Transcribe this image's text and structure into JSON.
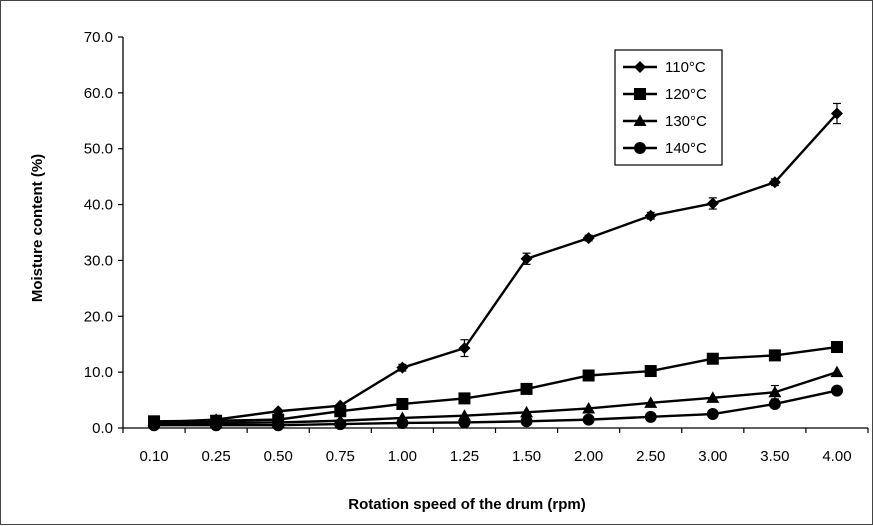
{
  "chart_data": {
    "type": "line",
    "title": "",
    "xlabel": "Rotation speed of the drum (rpm)",
    "ylabel": "Moisture content  (%)",
    "categories": [
      "0.10",
      "0.25",
      "0.50",
      "0.75",
      "1.00",
      "1.25",
      "1.50",
      "2.00",
      "2.50",
      "3.00",
      "3.50",
      "4.00"
    ],
    "yticks": [
      "0.0",
      "10.0",
      "20.0",
      "30.0",
      "40.0",
      "50.0",
      "60.0",
      "70.0"
    ],
    "ylim": [
      0,
      70
    ],
    "grid": false,
    "legend_position": "top-right",
    "series": [
      {
        "name": "110°C",
        "marker": "diamond",
        "values": [
          1.0,
          1.5,
          3.0,
          4.0,
          10.8,
          14.3,
          30.3,
          34.0,
          38.0,
          40.2,
          44.0,
          56.3
        ],
        "errors": [
          0,
          0,
          0,
          0,
          0.6,
          1.5,
          1.0,
          0.5,
          0.6,
          1.0,
          0.6,
          1.8
        ]
      },
      {
        "name": "120°C",
        "marker": "square",
        "values": [
          1.2,
          1.3,
          1.5,
          3.0,
          4.3,
          5.3,
          7.0,
          9.4,
          10.2,
          12.4,
          13.0,
          14.5
        ],
        "errors": [
          0,
          0,
          0,
          0,
          0,
          0,
          0,
          0,
          0,
          0,
          0,
          0
        ]
      },
      {
        "name": "130°C",
        "marker": "triangle",
        "values": [
          0.8,
          0.9,
          1.0,
          1.3,
          1.8,
          2.2,
          2.8,
          3.5,
          4.5,
          5.4,
          6.4,
          10.0
        ],
        "errors": [
          0,
          0,
          0,
          0,
          0,
          0,
          0,
          0,
          0,
          0,
          1.2,
          0
        ]
      },
      {
        "name": "140°C",
        "marker": "circle",
        "values": [
          0.5,
          0.5,
          0.5,
          0.7,
          0.9,
          1.0,
          1.2,
          1.5,
          2.0,
          2.5,
          4.3,
          6.7
        ],
        "errors": [
          0,
          0,
          0,
          0,
          0,
          0,
          0,
          0,
          0,
          0,
          0.7,
          0
        ]
      }
    ]
  }
}
